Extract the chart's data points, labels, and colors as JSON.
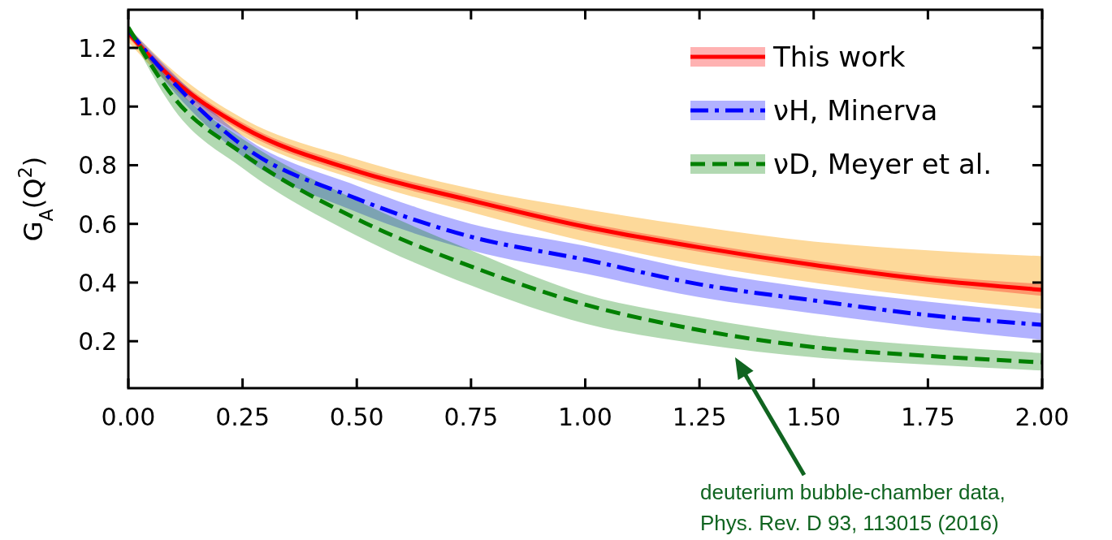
{
  "chart_data": {
    "type": "line",
    "ylabel": "G$_{A}$(Q$^{2}$)",
    "xlim": [
      0,
      2
    ],
    "ylim": [
      0.04,
      1.33
    ],
    "xticks": [
      {
        "value": 0,
        "label": "0.00"
      },
      {
        "value": 0.25,
        "label": "0.25"
      },
      {
        "value": 0.5,
        "label": "0.50"
      },
      {
        "value": 0.75,
        "label": "0.75"
      },
      {
        "value": 1,
        "label": "1.00"
      },
      {
        "value": 1.25,
        "label": "1.25"
      },
      {
        "value": 1.5,
        "label": "1.50"
      },
      {
        "value": 1.75,
        "label": "1.75"
      },
      {
        "value": 2,
        "label": "2.00"
      }
    ],
    "yticks": [
      0.2,
      0.4,
      0.6,
      0.8,
      {
        "value": 1,
        "label": "1.0"
      },
      1.2
    ],
    "x": [
      0,
      0.1,
      0.25,
      0.5,
      0.75,
      1,
      1.25,
      1.5,
      1.75,
      2
    ],
    "series": [
      {
        "color": "#fdd99a",
        "values": [
          null,
          null,
          null,
          null,
          null,
          null,
          null,
          null,
          null,
          null
        ],
        "lower": [
          1.22,
          1.06,
          0.9,
          0.75,
          0.64,
          0.54,
          0.46,
          0.4,
          0.35,
          0.31
        ],
        "upper": [
          1.27,
          1.12,
          0.96,
          0.82,
          0.72,
          0.65,
          0.59,
          0.54,
          0.51,
          0.49
        ]
      },
      {
        "name": "This work",
        "color": "#ff0000",
        "line_style": "solid",
        "values": [
          1.25,
          1.09,
          0.93,
          0.78,
          0.68,
          0.59,
          0.52,
          0.46,
          0.41,
          0.375
        ],
        "lower": [
          1.235,
          1.075,
          0.915,
          0.765,
          0.665,
          0.575,
          0.505,
          0.445,
          0.395,
          0.355
        ],
        "upper": [
          1.265,
          1.105,
          0.945,
          0.795,
          0.695,
          0.605,
          0.535,
          0.475,
          0.425,
          0.395
        ]
      },
      {
        "name": "νH, Minerva",
        "color": "#0000ff",
        "line_style": "dashdot",
        "values": [
          1.26,
          1.08,
          0.867,
          0.686,
          0.556,
          0.478,
          0.394,
          0.339,
          0.289,
          0.256
        ],
        "lower": [
          1.25,
          1.05,
          0.83,
          0.64,
          0.51,
          0.43,
          0.35,
          0.295,
          0.245,
          0.205
        ],
        "upper": [
          1.27,
          1.11,
          0.9,
          0.73,
          0.6,
          0.525,
          0.44,
          0.38,
          0.335,
          0.295
        ]
      },
      {
        "name": "νD, Meyer et al.",
        "color": "#008000",
        "line_style": "dashed",
        "values": [
          1.27,
          1.03,
          0.84,
          0.617,
          0.455,
          0.325,
          0.238,
          0.18,
          0.15,
          0.128
        ],
        "lower": [
          1.26,
          0.99,
          0.79,
          0.56,
          0.39,
          0.26,
          0.19,
          0.145,
          0.12,
          0.1
        ],
        "upper": [
          1.28,
          1.07,
          0.89,
          0.68,
          0.51,
          0.36,
          0.28,
          0.22,
          0.185,
          0.16
        ]
      }
    ],
    "legend": "top right",
    "annotations": [
      "deuterium bubble-chamber data,\nPhys. Rev. D 93, 113015 (2016)"
    ]
  }
}
